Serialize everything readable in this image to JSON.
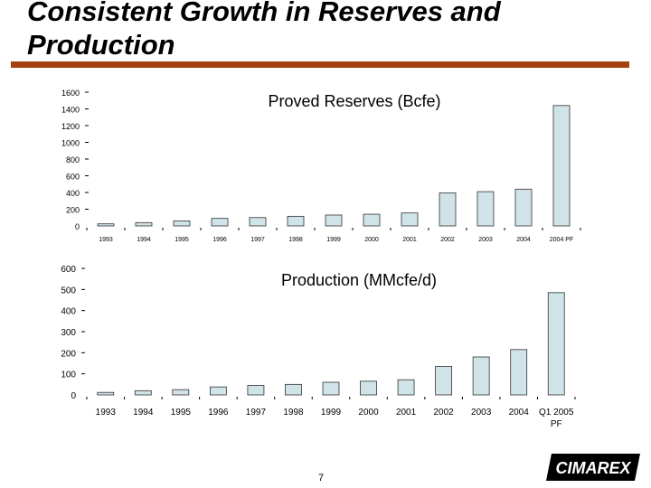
{
  "slide": {
    "title": "Consistent Growth in Reserves and Production",
    "page_number": "7",
    "logo_text": "CIMAREX",
    "colors": {
      "bar_fill": "#cfe3e8",
      "bar_stroke": "#333333",
      "rule": "#a6400e"
    }
  },
  "chart_data": [
    {
      "type": "bar",
      "title": "Proved Reserves (Bcfe)",
      "categories": [
        "1993",
        "1994",
        "1995",
        "1996",
        "1997",
        "1998",
        "1999",
        "2000",
        "2001",
        "2002",
        "2003",
        "2004",
        "2004 PF"
      ],
      "values": [
        25,
        40,
        60,
        90,
        100,
        115,
        130,
        140,
        155,
        395,
        410,
        440,
        1440
      ],
      "ylim": [
        0,
        1600
      ],
      "yticks": [
        "0",
        "200",
        "400",
        "600",
        "800",
        "1000",
        "1200",
        "1400",
        "1600"
      ],
      "xlabel": "",
      "ylabel": "",
      "grid": false
    },
    {
      "type": "bar",
      "title": "Production (MMcfe/d)",
      "categories": [
        "1993",
        "1994",
        "1995",
        "1996",
        "1997",
        "1998",
        "1999",
        "2000",
        "2001",
        "2002",
        "2003",
        "2004",
        "Q1 2005 PF"
      ],
      "values": [
        12,
        20,
        25,
        38,
        45,
        50,
        60,
        65,
        72,
        135,
        180,
        215,
        485
      ],
      "ylim": [
        0,
        600
      ],
      "yticks": [
        "0",
        "100",
        "200",
        "300",
        "400",
        "500",
        "600"
      ],
      "xlabel": "",
      "ylabel": "",
      "grid": false
    }
  ]
}
